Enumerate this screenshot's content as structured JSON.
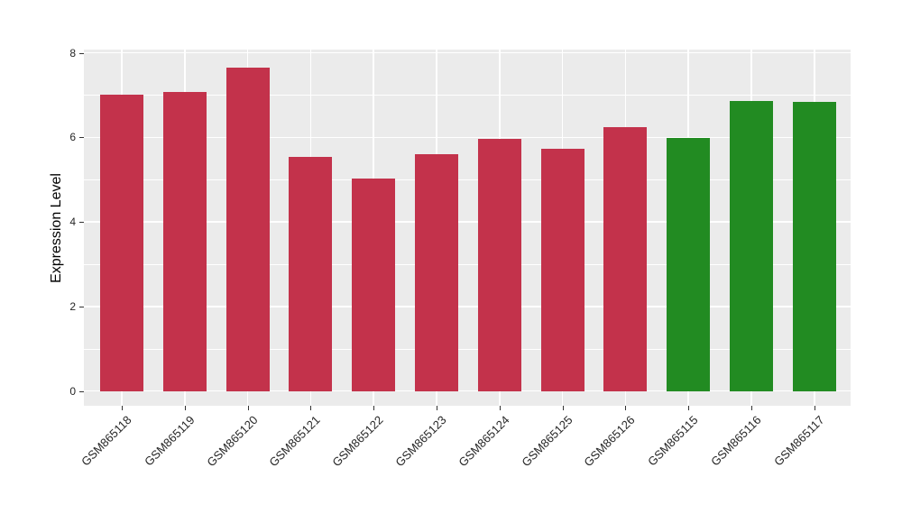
{
  "chart_data": {
    "type": "bar",
    "title": "",
    "xlabel": "",
    "ylabel": "Expression Level",
    "categories": [
      "GSM865118",
      "GSM865119",
      "GSM865120",
      "GSM865121",
      "GSM865122",
      "GSM865123",
      "GSM865124",
      "GSM865125",
      "GSM865126",
      "GSM865115",
      "GSM865116",
      "GSM865117"
    ],
    "values": [
      7.0,
      7.07,
      7.65,
      5.54,
      5.02,
      5.61,
      5.96,
      5.74,
      6.24,
      5.98,
      6.86,
      6.84
    ],
    "bar_colors": [
      "#C3324B",
      "#C3324B",
      "#C3324B",
      "#C3324B",
      "#C3324B",
      "#C3324B",
      "#C3324B",
      "#C3324B",
      "#C3324B",
      "#228B22",
      "#228B22",
      "#228B22"
    ],
    "ylim": [
      0,
      8.43
    ],
    "yticks": [
      0,
      2,
      4,
      6,
      8
    ],
    "yticks_minor": [
      1,
      3,
      5,
      7
    ],
    "grid": "on",
    "legend": "none"
  },
  "style": {
    "figure_bg": "#FFFFFF",
    "panel_bg": "#EBEBEB",
    "grid_color": "#FFFFFF",
    "tick_color": "#333333",
    "text_color": "#262626"
  }
}
